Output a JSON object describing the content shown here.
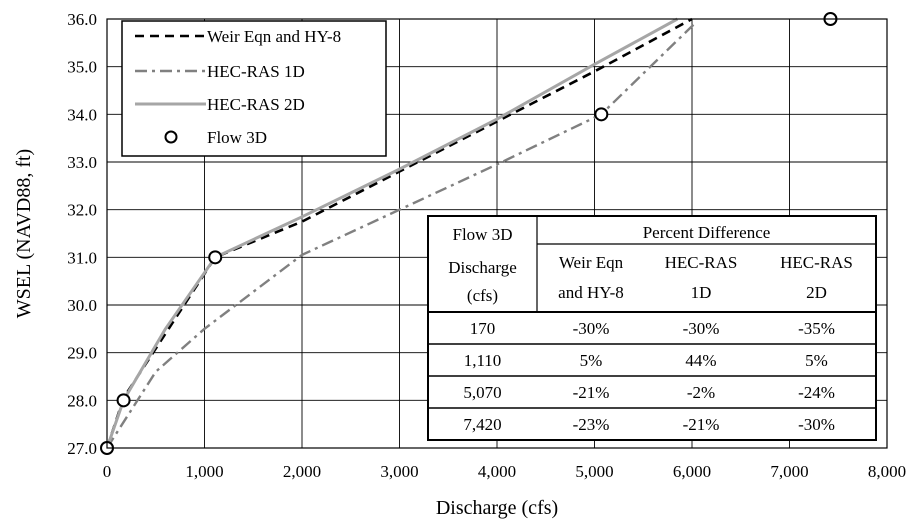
{
  "chart_data": {
    "type": "line",
    "xlabel": "Discharge (cfs)",
    "ylabel": "WSEL (NAVD88, ft)",
    "xlim": [
      0,
      8000
    ],
    "ylim": [
      27.0,
      36.0
    ],
    "x_ticks": [
      "0",
      "1,000",
      "2,000",
      "3,000",
      "4,000",
      "5,000",
      "6,000",
      "7,000",
      "8,000"
    ],
    "y_ticks": [
      "27.0",
      "28.0",
      "29.0",
      "30.0",
      "31.0",
      "32.0",
      "33.0",
      "34.0",
      "35.0",
      "36.0"
    ],
    "grid": true,
    "legend_position": "top-left",
    "series": [
      {
        "name": "Weir Eqn and HY-8",
        "style": "dashed",
        "color": "#000000",
        "points": [
          [
            0,
            27.0
          ],
          [
            170,
            28.05
          ],
          [
            1110,
            31.0
          ],
          [
            2000,
            31.75
          ],
          [
            3000,
            32.8
          ],
          [
            4000,
            33.85
          ],
          [
            5000,
            34.9
          ],
          [
            6000,
            36.0
          ]
        ]
      },
      {
        "name": "HEC-RAS 1D",
        "style": "dashdot",
        "color": "#808080",
        "points": [
          [
            0,
            27.0
          ],
          [
            500,
            28.6
          ],
          [
            1000,
            29.5
          ],
          [
            2000,
            31.05
          ],
          [
            3000,
            32.0
          ],
          [
            4000,
            32.95
          ],
          [
            5070,
            34.0
          ],
          [
            6050,
            35.95
          ]
        ]
      },
      {
        "name": "HEC-RAS 2D",
        "style": "solid",
        "color": "#a6a6a6",
        "points": [
          [
            0,
            27.0
          ],
          [
            170,
            28.0
          ],
          [
            600,
            29.5
          ],
          [
            1110,
            31.0
          ],
          [
            2000,
            31.85
          ],
          [
            3000,
            32.85
          ],
          [
            4000,
            33.9
          ],
          [
            5000,
            35.05
          ],
          [
            5850,
            36.0
          ]
        ]
      },
      {
        "name": "Flow 3D",
        "style": "markers",
        "color": "#000000",
        "points": [
          [
            0,
            27.0
          ],
          [
            170,
            28.0
          ],
          [
            1110,
            31.0
          ],
          [
            5070,
            34.0
          ],
          [
            7420,
            36.0
          ]
        ]
      }
    ],
    "table": {
      "header_col1": [
        "Flow 3D",
        "Discharge",
        "(cfs)"
      ],
      "header_group": "Percent Difference",
      "sub_headers": [
        [
          "Weir Eqn",
          "and HY-8"
        ],
        [
          "HEC-RAS",
          "1D"
        ],
        [
          "HEC-RAS",
          "2D"
        ]
      ],
      "rows": [
        [
          "170",
          "-30%",
          "-30%",
          "-35%"
        ],
        [
          "1,110",
          "5%",
          "44%",
          "5%"
        ],
        [
          "5,070",
          "-21%",
          "-2%",
          "-24%"
        ],
        [
          "7,420",
          "-23%",
          "-21%",
          "-30%"
        ]
      ]
    }
  }
}
